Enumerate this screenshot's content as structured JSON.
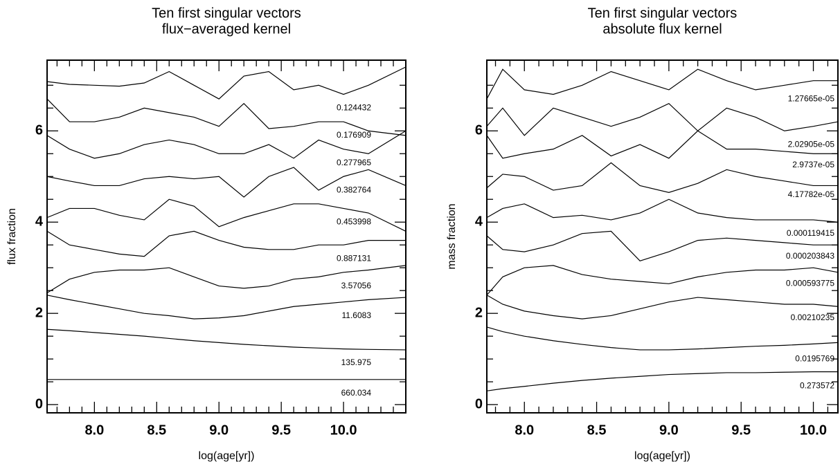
{
  "chart_data": [
    {
      "type": "line",
      "title": "Ten first singular vectors",
      "subtitle": "flux−averaged kernel",
      "xlabel": "log(age[yr])",
      "ylabel": "flux fraction",
      "xlim": [
        7.62,
        10.5
      ],
      "ylim": [
        -0.18,
        7.55
      ],
      "xticks": [
        {
          "value": 8,
          "label": "8.0"
        },
        {
          "value": 8.5,
          "label": "8.5"
        },
        {
          "value": 9,
          "label": "9.0"
        },
        {
          "value": 9.5,
          "label": "9.5"
        },
        {
          "value": 10,
          "label": "10.0"
        }
      ],
      "xminorticks": [
        7.7,
        7.8,
        7.9,
        8.1,
        8.2,
        8.3,
        8.4,
        8.6,
        8.7,
        8.8,
        8.9,
        9.1,
        9.2,
        9.3,
        9.4,
        9.6,
        9.7,
        9.8,
        9.9,
        10.1,
        10.2,
        10.3,
        10.4
      ],
      "yticks": [
        0,
        2,
        4,
        6
      ],
      "yminorticks": [
        0.5,
        1,
        1.5,
        2.5,
        3,
        3.5,
        4.5,
        5,
        5.5,
        6.5,
        7
      ],
      "x": [
        7.62,
        7.8,
        8.0,
        8.2,
        8.4,
        8.6,
        8.8,
        9.0,
        9.2,
        9.4,
        9.6,
        9.8,
        10.0,
        10.2,
        10.5
      ],
      "series": [
        {
          "label": "0.124432",
          "color": "#000000",
          "values": [
            7.08,
            7.02,
            7.0,
            6.98,
            7.05,
            7.3,
            7.0,
            6.7,
            7.2,
            7.3,
            6.9,
            7.0,
            6.8,
            7.0,
            7.4
          ]
        },
        {
          "label": "0.176909",
          "color": "#000000",
          "values": [
            6.7,
            6.2,
            6.2,
            6.3,
            6.5,
            6.4,
            6.3,
            6.1,
            6.6,
            6.05,
            6.1,
            6.2,
            6.2,
            6.0,
            5.9
          ]
        },
        {
          "label": "0.277965",
          "color": "#000000",
          "values": [
            5.9,
            5.6,
            5.4,
            5.5,
            5.7,
            5.8,
            5.7,
            5.5,
            5.5,
            5.7,
            5.4,
            5.8,
            5.6,
            5.5,
            6.0
          ]
        },
        {
          "label": "0.382764",
          "color": "#000000",
          "values": [
            5.0,
            4.9,
            4.8,
            4.8,
            4.95,
            5.0,
            4.95,
            5.0,
            4.55,
            5.0,
            5.2,
            4.7,
            5.0,
            5.15,
            4.8
          ]
        },
        {
          "label": "0.453998",
          "color": "#000000",
          "values": [
            4.1,
            4.3,
            4.3,
            4.15,
            4.05,
            4.5,
            4.35,
            3.9,
            4.1,
            4.25,
            4.4,
            4.4,
            4.3,
            4.2,
            3.8
          ]
        },
        {
          "label": "0.887131",
          "color": "#000000",
          "values": [
            3.8,
            3.5,
            3.4,
            3.3,
            3.25,
            3.7,
            3.8,
            3.6,
            3.45,
            3.4,
            3.4,
            3.5,
            3.5,
            3.6,
            3.6
          ]
        },
        {
          "label": "3.57056",
          "color": "#000000",
          "values": [
            2.45,
            2.75,
            2.9,
            2.95,
            2.95,
            3.0,
            2.8,
            2.6,
            2.55,
            2.6,
            2.75,
            2.8,
            2.9,
            2.95,
            3.05
          ]
        },
        {
          "label": "11.6083",
          "color": "#000000",
          "values": [
            2.4,
            2.3,
            2.2,
            2.1,
            2.0,
            1.95,
            1.88,
            1.9,
            1.95,
            2.05,
            2.15,
            2.2,
            2.25,
            2.3,
            2.35
          ]
        },
        {
          "label": "135.975",
          "color": "#000000",
          "values": [
            1.65,
            1.62,
            1.58,
            1.54,
            1.5,
            1.45,
            1.4,
            1.36,
            1.32,
            1.29,
            1.26,
            1.24,
            1.22,
            1.21,
            1.2
          ]
        },
        {
          "label": "660.034",
          "color": "#000000",
          "values": [
            0.55,
            0.55,
            0.55,
            0.55,
            0.55,
            0.55,
            0.55,
            0.55,
            0.55,
            0.55,
            0.55,
            0.55,
            0.55,
            0.55,
            0.55
          ]
        }
      ]
    },
    {
      "type": "line",
      "title": "Ten first singular vectors",
      "subtitle": "absolute flux kernel",
      "xlabel": "log(age[yr])",
      "ylabel": "mass fraction",
      "xlim": [
        7.74,
        10.17
      ],
      "ylim": [
        -0.18,
        7.55
      ],
      "xticks": [
        {
          "value": 8,
          "label": "8.0"
        },
        {
          "value": 8.5,
          "label": "8.5"
        },
        {
          "value": 9,
          "label": "9.0"
        },
        {
          "value": 9.5,
          "label": "9.5"
        },
        {
          "value": 10,
          "label": "10.0"
        }
      ],
      "xminorticks": [
        7.8,
        7.9,
        8.1,
        8.2,
        8.3,
        8.4,
        8.6,
        8.7,
        8.8,
        8.9,
        9.1,
        9.2,
        9.3,
        9.4,
        9.6,
        9.7,
        9.8,
        9.9,
        10.1
      ],
      "yticks": [
        0,
        2,
        4,
        6
      ],
      "yminorticks": [
        0.5,
        1,
        1.5,
        2.5,
        3,
        3.5,
        4.5,
        5,
        5.5,
        6.5,
        7
      ],
      "x": [
        7.74,
        7.85,
        8.0,
        8.2,
        8.4,
        8.6,
        8.8,
        9.0,
        9.2,
        9.4,
        9.6,
        9.8,
        10.0,
        10.17
      ],
      "series": [
        {
          "label": "1.27665e-05",
          "color": "#000000",
          "values": [
            6.7,
            7.35,
            6.9,
            6.8,
            7.0,
            7.3,
            7.1,
            6.9,
            7.35,
            7.1,
            6.9,
            7.0,
            7.1,
            7.1
          ]
        },
        {
          "label": "2.02905e-05",
          "color": "#000000",
          "values": [
            6.1,
            6.5,
            5.9,
            6.5,
            6.3,
            6.1,
            6.3,
            6.6,
            6.0,
            6.5,
            6.3,
            6.0,
            6.1,
            6.2
          ]
        },
        {
          "label": "2.9737e-05",
          "color": "#000000",
          "values": [
            5.9,
            5.4,
            5.5,
            5.6,
            5.9,
            5.45,
            5.7,
            5.4,
            6.0,
            5.6,
            5.6,
            5.55,
            5.5,
            5.5
          ]
        },
        {
          "label": "4.17782e-05",
          "color": "#000000",
          "values": [
            4.75,
            5.05,
            5.0,
            4.7,
            4.8,
            5.3,
            4.8,
            4.65,
            4.85,
            5.15,
            5.0,
            4.9,
            4.8,
            4.8
          ]
        },
        {
          "label": "0.000119415",
          "color": "#000000",
          "values": [
            4.1,
            4.3,
            4.4,
            4.1,
            4.15,
            4.05,
            4.2,
            4.5,
            4.2,
            4.1,
            4.05,
            4.05,
            4.05,
            4.0
          ]
        },
        {
          "label": "0.000203843",
          "color": "#000000",
          "values": [
            3.7,
            3.4,
            3.35,
            3.5,
            3.75,
            3.8,
            3.15,
            3.35,
            3.6,
            3.65,
            3.6,
            3.55,
            3.5,
            3.5
          ]
        },
        {
          "label": "0.000593775",
          "color": "#000000",
          "values": [
            2.4,
            2.8,
            3.0,
            3.05,
            2.85,
            2.75,
            2.7,
            2.65,
            2.8,
            2.9,
            2.95,
            2.95,
            3.0,
            2.9
          ]
        },
        {
          "label": "0.00210235",
          "color": "#000000",
          "values": [
            2.4,
            2.2,
            2.05,
            1.95,
            1.88,
            1.95,
            2.1,
            2.25,
            2.35,
            2.3,
            2.25,
            2.2,
            2.2,
            2.15
          ]
        },
        {
          "label": "0.0195769",
          "color": "#000000",
          "values": [
            1.7,
            1.6,
            1.5,
            1.4,
            1.32,
            1.25,
            1.2,
            1.2,
            1.22,
            1.25,
            1.28,
            1.3,
            1.33,
            1.36
          ]
        },
        {
          "label": "0.273572",
          "color": "#000000",
          "values": [
            0.3,
            0.35,
            0.4,
            0.47,
            0.53,
            0.58,
            0.62,
            0.66,
            0.68,
            0.7,
            0.7,
            0.71,
            0.72,
            0.72
          ]
        }
      ]
    }
  ]
}
